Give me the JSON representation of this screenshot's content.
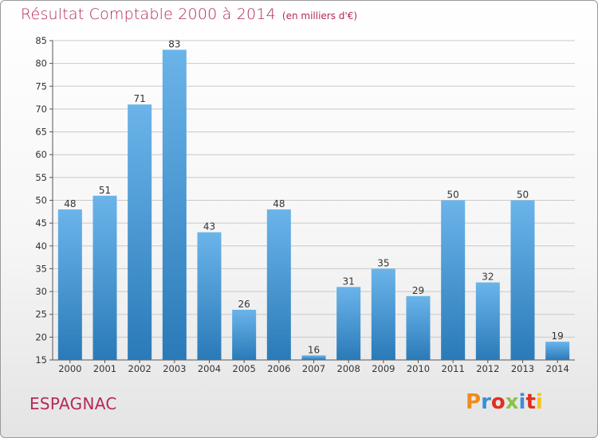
{
  "header": {
    "title": "Résultat Comptable 2000 à 2014",
    "subtitle": "(en milliers d'€)"
  },
  "footer": {
    "commune": "ESPAGNAC",
    "logo_text": "Proxiti",
    "logo_colors": [
      "#f08c1e",
      "#3a8fd6",
      "#e0301e",
      "#8bc34a",
      "#3a8fd6",
      "#e0301e",
      "#f5c518"
    ]
  },
  "colors": {
    "title": "#b4285a",
    "bar_light": "#6bb4ea",
    "bar_dark": "#2a7ab8",
    "grid": "#c9c9c9"
  },
  "chart_data": {
    "type": "bar",
    "title": "Résultat Comptable 2000 à 2014",
    "subtitle": "(en milliers d'€)",
    "xlabel": "",
    "ylabel": "",
    "categories": [
      "2000",
      "2001",
      "2002",
      "2003",
      "2004",
      "2005",
      "2006",
      "2007",
      "2008",
      "2009",
      "2010",
      "2011",
      "2012",
      "2013",
      "2014"
    ],
    "values": [
      48,
      51,
      71,
      83,
      43,
      26,
      48,
      16,
      31,
      35,
      29,
      50,
      32,
      50,
      19
    ],
    "ylim": [
      15,
      85
    ],
    "yticks": [
      15,
      20,
      25,
      30,
      35,
      40,
      45,
      50,
      55,
      60,
      65,
      70,
      75,
      80,
      85
    ],
    "grid": true,
    "legend": "none"
  }
}
